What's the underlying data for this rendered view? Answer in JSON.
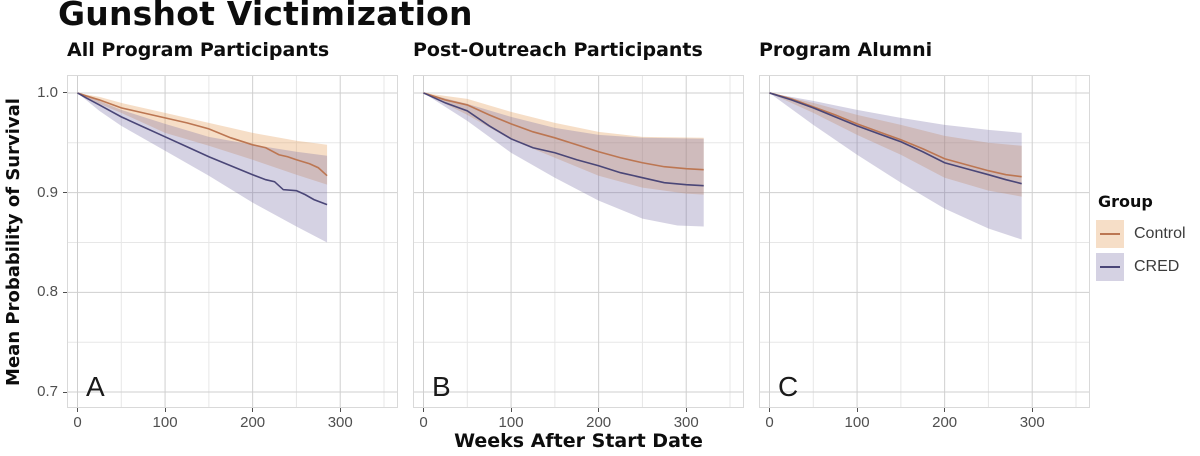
{
  "page_title": "Gunshot Victimization",
  "axes": {
    "x_label": "Weeks After Start Date",
    "y_label": "Mean Probability of Survival"
  },
  "legend": {
    "title": "Group",
    "entries": [
      {
        "label": "Control",
        "line_color": "#bc7652",
        "fill_color": "rgba(230,160,95,0.35)"
      },
      {
        "label": "CRED",
        "line_color": "#4a4677",
        "fill_color": "rgba(116,106,162,0.30)"
      }
    ]
  },
  "chart_data": {
    "type": "line",
    "title": "Gunshot Victimization",
    "xlabel": "Weeks After Start Date",
    "ylabel": "Mean Probability of Survival",
    "xlim": [
      -12,
      366
    ],
    "ylim": [
      0.684,
      1.018
    ],
    "xticks": [
      0,
      100,
      200,
      300
    ],
    "yticks": [
      1.0,
      0.9,
      0.8,
      0.7
    ],
    "ytick_labels": [
      "1.0",
      "0.9",
      "0.8",
      "0.7"
    ],
    "minor_xticks": [
      50,
      150,
      250,
      350
    ],
    "minor_yticks": [
      0.75,
      0.85,
      0.95
    ],
    "grid": true,
    "legend_position": "right",
    "styles": {
      "Control": {
        "stroke": "#bc7652",
        "fill": "rgba(230,160,95,0.35)"
      },
      "CRED": {
        "stroke": "#4a4677",
        "fill": "rgba(116,106,162,0.30)"
      }
    },
    "facets": [
      {
        "label": "A",
        "title": "All Program Participants",
        "series": [
          {
            "name": "Control",
            "line": [
              [
                0,
                1.0
              ],
              [
                10,
                0.997
              ],
              [
                25,
                0.993
              ],
              [
                50,
                0.985
              ],
              [
                75,
                0.98
              ],
              [
                100,
                0.975
              ],
              [
                125,
                0.97
              ],
              [
                150,
                0.964
              ],
              [
                175,
                0.955
              ],
              [
                200,
                0.948
              ],
              [
                215,
                0.945
              ],
              [
                230,
                0.938
              ],
              [
                240,
                0.936
              ],
              [
                250,
                0.933
              ],
              [
                265,
                0.929
              ],
              [
                275,
                0.925
              ],
              [
                285,
                0.917
              ]
            ],
            "upper": [
              [
                0,
                1.0
              ],
              [
                25,
                0.996
              ],
              [
                50,
                0.99
              ],
              [
                100,
                0.98
              ],
              [
                150,
                0.97
              ],
              [
                200,
                0.96
              ],
              [
                250,
                0.952
              ],
              [
                285,
                0.948
              ]
            ],
            "lower": [
              [
                0,
                1.0
              ],
              [
                25,
                0.989
              ],
              [
                50,
                0.98
              ],
              [
                100,
                0.96
              ],
              [
                150,
                0.947
              ],
              [
                200,
                0.933
              ],
              [
                250,
                0.918
              ],
              [
                285,
                0.908
              ]
            ]
          },
          {
            "name": "CRED",
            "line": [
              [
                0,
                1.0
              ],
              [
                10,
                0.995
              ],
              [
                25,
                0.988
              ],
              [
                50,
                0.976
              ],
              [
                75,
                0.966
              ],
              [
                100,
                0.956
              ],
              [
                125,
                0.946
              ],
              [
                150,
                0.936
              ],
              [
                175,
                0.927
              ],
              [
                200,
                0.918
              ],
              [
                215,
                0.913
              ],
              [
                225,
                0.911
              ],
              [
                235,
                0.903
              ],
              [
                250,
                0.902
              ],
              [
                260,
                0.898
              ],
              [
                270,
                0.893
              ],
              [
                285,
                0.888
              ]
            ],
            "upper": [
              [
                0,
                1.0
              ],
              [
                25,
                0.992
              ],
              [
                50,
                0.983
              ],
              [
                100,
                0.969
              ],
              [
                150,
                0.956
              ],
              [
                200,
                0.948
              ],
              [
                250,
                0.941
              ],
              [
                285,
                0.937
              ]
            ],
            "lower": [
              [
                0,
                1.0
              ],
              [
                25,
                0.982
              ],
              [
                50,
                0.967
              ],
              [
                100,
                0.942
              ],
              [
                150,
                0.917
              ],
              [
                200,
                0.89
              ],
              [
                250,
                0.866
              ],
              [
                285,
                0.85
              ]
            ]
          }
        ]
      },
      {
        "label": "B",
        "title": "Post-Outreach Participants",
        "series": [
          {
            "name": "Control",
            "line": [
              [
                0,
                1.0
              ],
              [
                25,
                0.993
              ],
              [
                50,
                0.988
              ],
              [
                75,
                0.978
              ],
              [
                100,
                0.969
              ],
              [
                125,
                0.961
              ],
              [
                150,
                0.955
              ],
              [
                175,
                0.948
              ],
              [
                200,
                0.941
              ],
              [
                225,
                0.935
              ],
              [
                250,
                0.93
              ],
              [
                275,
                0.926
              ],
              [
                300,
                0.924
              ],
              [
                320,
                0.923
              ]
            ],
            "upper": [
              [
                0,
                1.0
              ],
              [
                50,
                0.994
              ],
              [
                100,
                0.981
              ],
              [
                150,
                0.97
              ],
              [
                200,
                0.961
              ],
              [
                250,
                0.956
              ],
              [
                320,
                0.955
              ]
            ],
            "lower": [
              [
                0,
                1.0
              ],
              [
                50,
                0.978
              ],
              [
                100,
                0.953
              ],
              [
                150,
                0.935
              ],
              [
                200,
                0.917
              ],
              [
                250,
                0.905
              ],
              [
                300,
                0.899
              ],
              [
                320,
                0.898
              ]
            ]
          },
          {
            "name": "CRED",
            "line": [
              [
                0,
                1.0
              ],
              [
                25,
                0.99
              ],
              [
                50,
                0.982
              ],
              [
                75,
                0.967
              ],
              [
                100,
                0.954
              ],
              [
                125,
                0.945
              ],
              [
                150,
                0.94
              ],
              [
                175,
                0.933
              ],
              [
                200,
                0.927
              ],
              [
                225,
                0.92
              ],
              [
                250,
                0.915
              ],
              [
                275,
                0.91
              ],
              [
                300,
                0.908
              ],
              [
                320,
                0.907
              ]
            ],
            "upper": [
              [
                0,
                1.0
              ],
              [
                50,
                0.989
              ],
              [
                100,
                0.976
              ],
              [
                150,
                0.965
              ],
              [
                200,
                0.958
              ],
              [
                250,
                0.955
              ],
              [
                320,
                0.954
              ]
            ],
            "lower": [
              [
                0,
                1.0
              ],
              [
                50,
                0.972
              ],
              [
                100,
                0.94
              ],
              [
                150,
                0.915
              ],
              [
                200,
                0.892
              ],
              [
                250,
                0.874
              ],
              [
                290,
                0.867
              ],
              [
                320,
                0.866
              ]
            ]
          }
        ]
      },
      {
        "label": "C",
        "title": "Program Alumni",
        "series": [
          {
            "name": "Control",
            "line": [
              [
                0,
                1.0
              ],
              [
                25,
                0.994
              ],
              [
                50,
                0.986
              ],
              [
                75,
                0.978
              ],
              [
                100,
                0.969
              ],
              [
                125,
                0.961
              ],
              [
                150,
                0.953
              ],
              [
                175,
                0.944
              ],
              [
                200,
                0.934
              ],
              [
                225,
                0.928
              ],
              [
                250,
                0.922
              ],
              [
                270,
                0.918
              ],
              [
                288,
                0.916
              ]
            ],
            "upper": [
              [
                0,
                1.0
              ],
              [
                50,
                0.99
              ],
              [
                100,
                0.978
              ],
              [
                150,
                0.968
              ],
              [
                200,
                0.957
              ],
              [
                250,
                0.95
              ],
              [
                288,
                0.947
              ]
            ],
            "lower": [
              [
                0,
                1.0
              ],
              [
                50,
                0.98
              ],
              [
                100,
                0.958
              ],
              [
                150,
                0.938
              ],
              [
                200,
                0.915
              ],
              [
                250,
                0.902
              ],
              [
                288,
                0.896
              ]
            ]
          },
          {
            "name": "CRED",
            "line": [
              [
                0,
                1.0
              ],
              [
                25,
                0.993
              ],
              [
                50,
                0.985
              ],
              [
                75,
                0.976
              ],
              [
                100,
                0.967
              ],
              [
                125,
                0.959
              ],
              [
                150,
                0.951
              ],
              [
                175,
                0.941
              ],
              [
                200,
                0.93
              ],
              [
                225,
                0.924
              ],
              [
                250,
                0.918
              ],
              [
                270,
                0.913
              ],
              [
                288,
                0.909
              ]
            ],
            "upper": [
              [
                0,
                1.0
              ],
              [
                50,
                0.992
              ],
              [
                100,
                0.983
              ],
              [
                150,
                0.975
              ],
              [
                200,
                0.968
              ],
              [
                250,
                0.963
              ],
              [
                288,
                0.96
              ]
            ],
            "lower": [
              [
                0,
                1.0
              ],
              [
                50,
                0.968
              ],
              [
                100,
                0.938
              ],
              [
                150,
                0.91
              ],
              [
                200,
                0.884
              ],
              [
                250,
                0.864
              ],
              [
                288,
                0.853
              ]
            ]
          }
        ]
      }
    ]
  }
}
